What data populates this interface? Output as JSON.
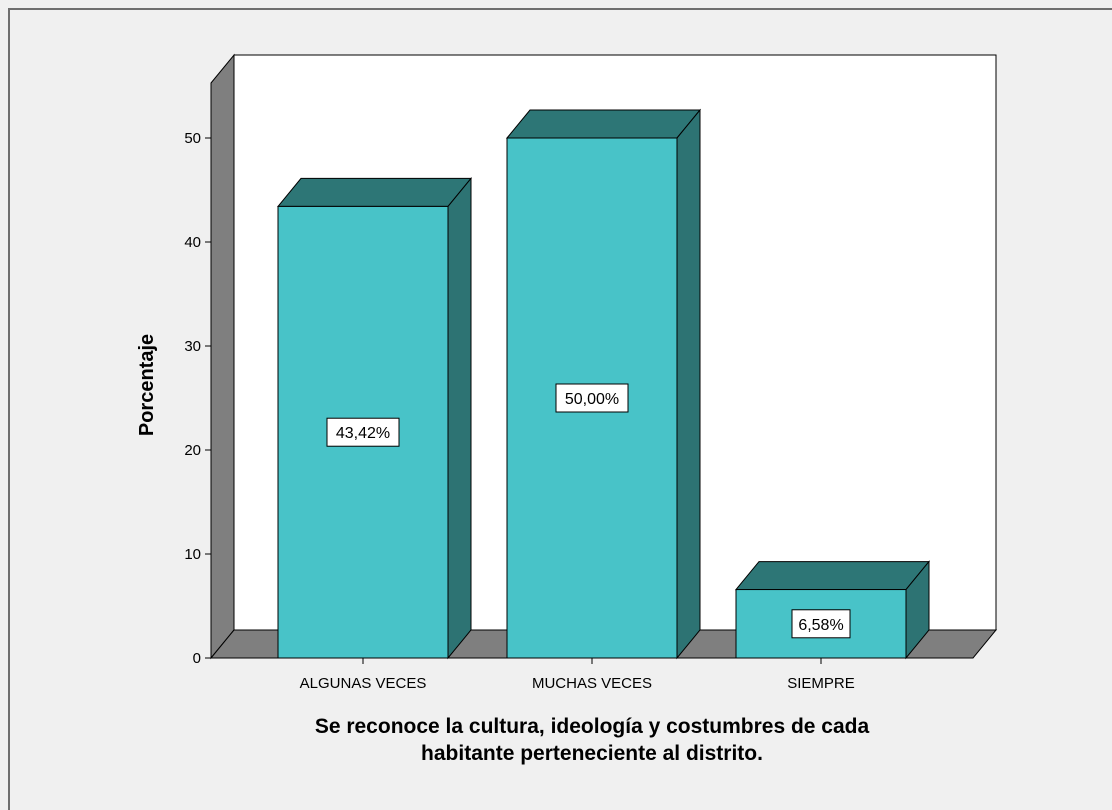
{
  "chart_data": {
    "type": "bar",
    "categories": [
      "ALGUNAS VECES",
      "MUCHAS VECES",
      "SIEMPRE"
    ],
    "values": [
      43.42,
      50.0,
      6.58
    ],
    "data_labels": [
      "43,42%",
      "50,00%",
      "6,58%"
    ],
    "ylabel": "Porcentaje",
    "xlabel_lines": [
      "Se reconoce la cultura, ideología y costumbres de cada",
      "habitante perteneciente al distrito."
    ],
    "yticks": [
      "0",
      "10",
      "20",
      "30",
      "40",
      "50"
    ],
    "ylim": [
      0,
      50
    ],
    "grid": false,
    "legend": "none",
    "style": "3d",
    "colors": {
      "bar_front": "#48c3c8",
      "bar_side": "#2d7373",
      "bar_top": "#2d7676",
      "floor": "#7f7f7f",
      "wall_side": "#7f7f7f",
      "plot_background": "#ffffff",
      "page_background": "#f0f0f0"
    }
  }
}
